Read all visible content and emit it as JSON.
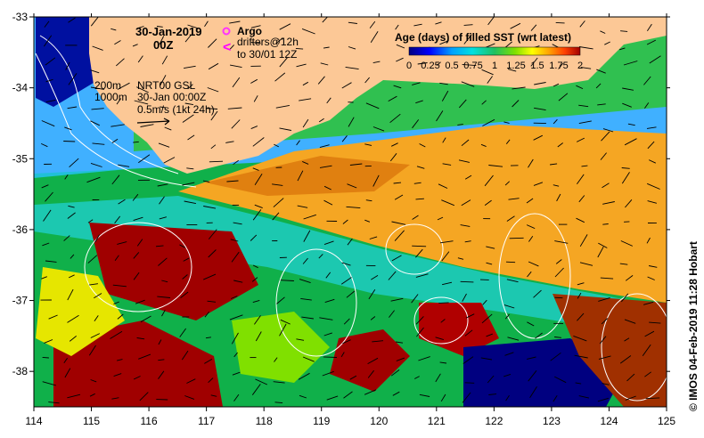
{
  "header": {
    "date": "30-Jan-2019",
    "time": "00Z"
  },
  "argo": {
    "label": "Argo",
    "symbol_color": "#ff33ff"
  },
  "drifters": {
    "line1": "drifters@12h",
    "line2": "to 30/01 12Z",
    "symbol": "<",
    "symbol_color": "#ff00ff"
  },
  "isobaths": {
    "a": "200m",
    "b": "1000m"
  },
  "currents": {
    "line1": "NRT00 GSL",
    "line2": "30-Jan 00:00Z",
    "scale": "0.5m/s (1kt 24h)"
  },
  "colorbar": {
    "title": "Age (days) of filled SST (wrt latest)",
    "ticks": [
      "0",
      "0.25",
      "0.5",
      "0.75",
      "1",
      "1.25",
      "1.5",
      "1.75",
      "2"
    ],
    "colors": [
      "#000080",
      "#0000ff",
      "#00a0ff",
      "#00e0e0",
      "#20c060",
      "#80e000",
      "#ffff00",
      "#ffa000",
      "#ff4000",
      "#a00000"
    ]
  },
  "axes": {
    "x_ticks": [
      "114",
      "115",
      "116",
      "117",
      "118",
      "119",
      "120",
      "121",
      "122",
      "123",
      "124",
      "125"
    ],
    "y_ticks": [
      "-33",
      "-34",
      "-35",
      "-36",
      "-37",
      "-38"
    ],
    "x_range": [
      114,
      125
    ],
    "y_range": [
      -38.5,
      -33
    ]
  },
  "land_color": "#fcc896",
  "credit": "© IMOS 04-Feb-2019 11:28 Hobart"
}
